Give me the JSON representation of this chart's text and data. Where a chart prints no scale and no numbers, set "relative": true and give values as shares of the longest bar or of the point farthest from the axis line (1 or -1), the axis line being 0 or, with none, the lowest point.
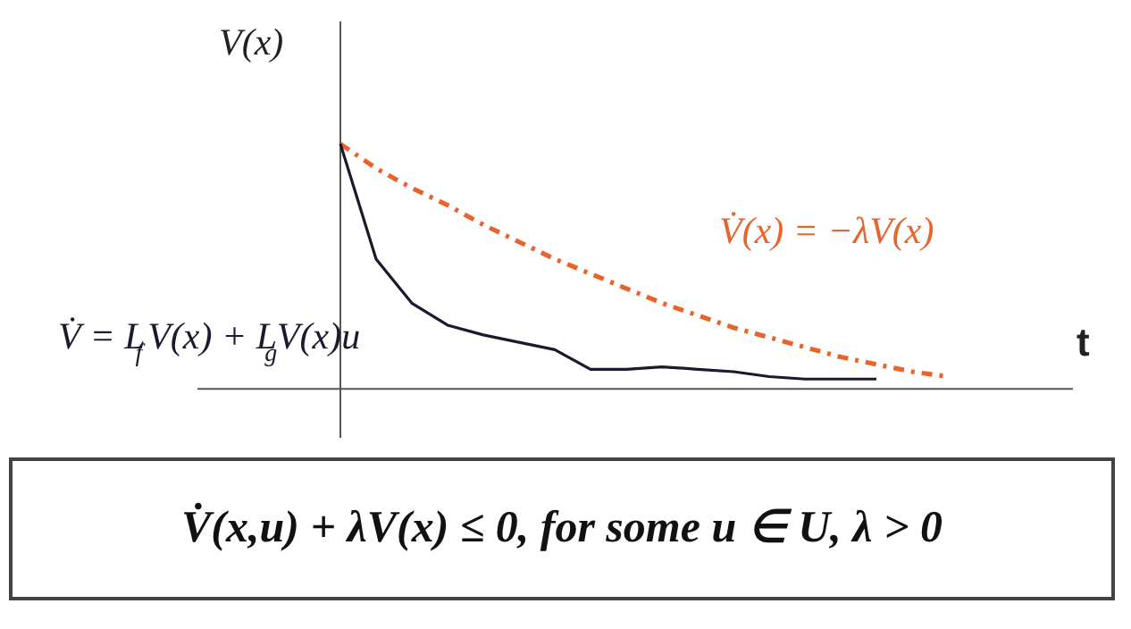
{
  "chart_data": {
    "type": "line",
    "relative": true,
    "xlabel": "t",
    "ylabel": "V(x)",
    "categories": [
      null,
      null,
      null,
      null,
      null,
      null,
      null,
      null,
      null,
      null,
      null,
      null,
      null,
      null,
      null,
      null,
      null,
      null
    ],
    "series": [
      {
        "name": "V̇(x) = −λV(x)",
        "color": "#e8642c",
        "line_style": "dashdot",
        "values": [
          1.0,
          0.9,
          0.82,
          0.75,
          0.67,
          0.6,
          0.53,
          0.47,
          0.41,
          0.35,
          0.3,
          0.25,
          0.21,
          0.17,
          0.13,
          0.1,
          0.07,
          0.05
        ]
      },
      {
        "name": "V̇ = L$_{f}$V(x) + L$_{g}$V(x)u",
        "color": "#1a1a2e",
        "line_style": "solid",
        "values": [
          1.0,
          0.53,
          0.35,
          0.26,
          0.22,
          0.19,
          0.16,
          0.08,
          0.08,
          0.09,
          0.08,
          0.07,
          0.05,
          0.04,
          0.04,
          0.04,
          null,
          null
        ]
      }
    ],
    "grid": false,
    "marker": "none",
    "annotations": [
      "V̇(x,u) + λV(x) ≤ 0, for some u ∈ U, λ > 0"
    ]
  }
}
